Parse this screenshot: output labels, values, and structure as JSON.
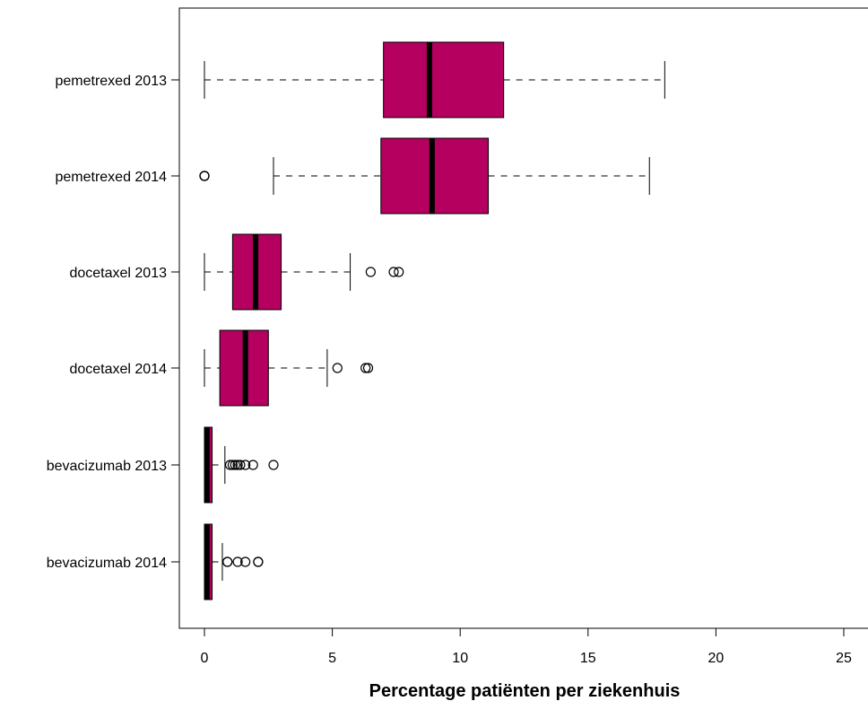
{
  "chart_data": {
    "type": "boxplot",
    "orientation": "horizontal",
    "xlabel": "Percentage patiënten per ziekenhuis",
    "xlim": [
      -1,
      25.8
    ],
    "xticks": [
      0,
      5,
      10,
      15,
      20,
      25
    ],
    "xtick_labels": [
      "0",
      "5",
      "10",
      "15",
      "20",
      "25"
    ],
    "box_color": "#b5005f",
    "median_color": "#000000",
    "categories": [
      "pemetrexed 2013",
      "pemetrexed 2014",
      "docetaxel 2013",
      "docetaxel 2014",
      "bevacizumab 2013",
      "bevacizumab 2014"
    ],
    "boxes": [
      {
        "label": "pemetrexed 2013",
        "whisker_low": 0,
        "q1": 7.0,
        "median": 8.8,
        "q3": 11.7,
        "whisker_high": 18.0,
        "outliers": []
      },
      {
        "label": "pemetrexed 2014",
        "whisker_low": 2.7,
        "q1": 6.9,
        "median": 8.9,
        "q3": 11.1,
        "whisker_high": 17.4,
        "outliers": [
          0,
          0,
          0
        ]
      },
      {
        "label": "docetaxel 2013",
        "whisker_low": 0,
        "q1": 1.1,
        "median": 2.0,
        "q3": 3.0,
        "whisker_high": 5.7,
        "outliers": [
          6.5,
          7.4,
          7.6
        ]
      },
      {
        "label": "docetaxel 2014",
        "whisker_low": 0,
        "q1": 0.6,
        "median": 1.6,
        "q3": 2.5,
        "whisker_high": 4.8,
        "outliers": [
          5.2,
          6.3,
          6.4
        ]
      },
      {
        "label": "bevacizumab 2013",
        "whisker_low": 0,
        "q1": 0,
        "median": 0.1,
        "q3": 0.3,
        "whisker_high": 0.8,
        "outliers": [
          1.0,
          1.1,
          1.2,
          1.3,
          1.4,
          1.6,
          1.9,
          2.7
        ]
      },
      {
        "label": "bevacizumab 2014",
        "whisker_low": 0,
        "q1": 0,
        "median": 0.1,
        "q3": 0.3,
        "whisker_high": 0.7,
        "outliers": [
          0.9,
          0.9,
          1.3,
          1.6,
          2.1,
          2.1
        ]
      }
    ]
  }
}
